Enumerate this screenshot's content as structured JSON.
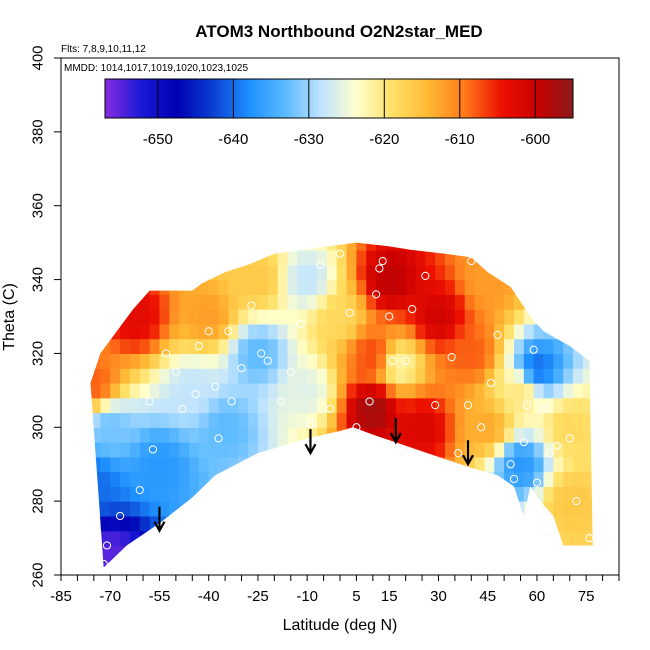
{
  "chart_data": {
    "type": "heatmap",
    "title": "ATOM3 Northbound O2N2star_MED",
    "subtitle_lines": [
      "Flts: 7,8,9,10,11,12",
      "MMDD: 1014,1017,1019,1020,1023,1025"
    ],
    "xlabel": "Latitude (deg N)",
    "ylabel": "Theta (C)",
    "xlim": [
      -85,
      85
    ],
    "ylim": [
      260,
      400
    ],
    "x_ticks": [
      -85,
      -70,
      -55,
      -40,
      -25,
      -10,
      5,
      15,
      30,
      45,
      60,
      75
    ],
    "y_ticks": [
      260,
      280,
      300,
      320,
      340,
      360,
      380,
      400
    ],
    "colorbar": {
      "range": [
        -657,
        -595
      ],
      "ticks": [
        -650,
        -640,
        -630,
        -620,
        -610,
        -600
      ],
      "colors": [
        "#8a2be2",
        "#1a1ad6",
        "#0000b3",
        "#0a3fd0",
        "#1e90ff",
        "#59b9ff",
        "#bfe3ff",
        "#ffffcc",
        "#ffe066",
        "#ffb833",
        "#ff7a1a",
        "#ee1100",
        "#c80000",
        "#8b1a1a"
      ]
    },
    "boundary": {
      "top": [
        [
          -76,
          312
        ],
        [
          -73,
          320
        ],
        [
          -68,
          326
        ],
        [
          -63,
          332
        ],
        [
          -58,
          337
        ],
        [
          -45,
          337
        ],
        [
          -42,
          339
        ],
        [
          -35,
          342
        ],
        [
          -28,
          344
        ],
        [
          -20,
          347
        ],
        [
          -12,
          348
        ],
        [
          -4,
          349
        ],
        [
          5,
          350
        ],
        [
          15,
          349
        ],
        [
          22,
          348
        ],
        [
          32,
          347
        ],
        [
          40,
          346
        ],
        [
          45,
          342
        ],
        [
          52,
          338
        ],
        [
          58,
          330
        ],
        [
          62,
          326
        ],
        [
          70,
          322
        ],
        [
          76,
          318
        ]
      ],
      "bottom": [
        [
          -72,
          262
        ],
        [
          -65,
          268
        ],
        [
          -55,
          274
        ],
        [
          -45,
          281
        ],
        [
          -38,
          287
        ],
        [
          -25,
          293
        ],
        [
          -10,
          297
        ],
        [
          0,
          299
        ],
        [
          4,
          300
        ],
        [
          10,
          298
        ],
        [
          20,
          295
        ],
        [
          30,
          292
        ],
        [
          40,
          289
        ],
        [
          48,
          287
        ],
        [
          53,
          284
        ],
        [
          56,
          276
        ],
        [
          58,
          284
        ],
        [
          62,
          279
        ],
        [
          65,
          276
        ],
        [
          68,
          268
        ],
        [
          77,
          268
        ]
      ]
    },
    "field_anchors": [
      {
        "x": -70,
        "y": 265,
        "value": -655
      },
      {
        "x": -75,
        "y": 285,
        "value": -640
      },
      {
        "x": -70,
        "y": 300,
        "value": -632
      },
      {
        "x": -75,
        "y": 312,
        "value": -608
      },
      {
        "x": -62,
        "y": 330,
        "value": -603
      },
      {
        "x": -55,
        "y": 290,
        "value": -637
      },
      {
        "x": -45,
        "y": 310,
        "value": -628
      },
      {
        "x": -40,
        "y": 330,
        "value": -612
      },
      {
        "x": -35,
        "y": 300,
        "value": -633
      },
      {
        "x": -25,
        "y": 320,
        "value": -633
      },
      {
        "x": -25,
        "y": 340,
        "value": -616
      },
      {
        "x": -10,
        "y": 310,
        "value": -626
      },
      {
        "x": -10,
        "y": 340,
        "value": -628
      },
      {
        "x": 0,
        "y": 330,
        "value": -618
      },
      {
        "x": 10,
        "y": 320,
        "value": -607
      },
      {
        "x": 15,
        "y": 340,
        "value": -599
      },
      {
        "x": 10,
        "y": 305,
        "value": -597
      },
      {
        "x": 18,
        "y": 317,
        "value": -622
      },
      {
        "x": 25,
        "y": 300,
        "value": -602
      },
      {
        "x": 30,
        "y": 330,
        "value": -601
      },
      {
        "x": 40,
        "y": 320,
        "value": -608
      },
      {
        "x": 45,
        "y": 340,
        "value": -612
      },
      {
        "x": 45,
        "y": 300,
        "value": -613
      },
      {
        "x": 55,
        "y": 290,
        "value": -637
      },
      {
        "x": 55,
        "y": 310,
        "value": -620
      },
      {
        "x": 60,
        "y": 316,
        "value": -640
      },
      {
        "x": 70,
        "y": 300,
        "value": -618
      },
      {
        "x": 70,
        "y": 280,
        "value": -616
      }
    ],
    "observation_points": [
      [
        -71,
        268
      ],
      [
        -72,
        263
      ],
      [
        -67,
        276
      ],
      [
        -61,
        283
      ],
      [
        -57,
        294
      ],
      [
        -58,
        307
      ],
      [
        -53,
        320
      ],
      [
        -50,
        315
      ],
      [
        -48,
        305
      ],
      [
        -44,
        309
      ],
      [
        -43,
        322
      ],
      [
        -40,
        326
      ],
      [
        -38,
        311
      ],
      [
        -37,
        297
      ],
      [
        -35,
        287
      ],
      [
        -34,
        326
      ],
      [
        -33,
        307
      ],
      [
        -30,
        316
      ],
      [
        -27,
        333
      ],
      [
        -24,
        320
      ],
      [
        -22,
        318
      ],
      [
        -18,
        307
      ],
      [
        -15,
        315
      ],
      [
        -12,
        328
      ],
      [
        -9,
        301
      ],
      [
        -6,
        344
      ],
      [
        -3,
        305
      ],
      [
        0,
        347
      ],
      [
        3,
        331
      ],
      [
        5,
        300
      ],
      [
        9,
        307
      ],
      [
        11,
        336
      ],
      [
        12,
        343
      ],
      [
        13,
        345
      ],
      [
        15,
        330
      ],
      [
        16,
        318
      ],
      [
        20,
        318
      ],
      [
        22,
        332
      ],
      [
        26,
        341
      ],
      [
        29,
        306
      ],
      [
        34,
        319
      ],
      [
        36,
        293
      ],
      [
        39,
        306
      ],
      [
        40,
        345
      ],
      [
        43,
        300
      ],
      [
        46,
        312
      ],
      [
        48,
        325
      ],
      [
        52,
        290
      ],
      [
        53,
        286
      ],
      [
        56,
        296
      ],
      [
        57,
        306
      ],
      [
        59,
        321
      ],
      [
        60,
        285
      ],
      [
        62,
        305
      ],
      [
        64,
        293
      ],
      [
        66,
        295
      ],
      [
        70,
        297
      ],
      [
        72,
        280
      ],
      [
        76,
        270
      ]
    ],
    "arrows": [
      [
        -55,
        272
      ],
      [
        -9,
        293
      ],
      [
        17,
        296
      ],
      [
        39,
        290
      ]
    ]
  }
}
